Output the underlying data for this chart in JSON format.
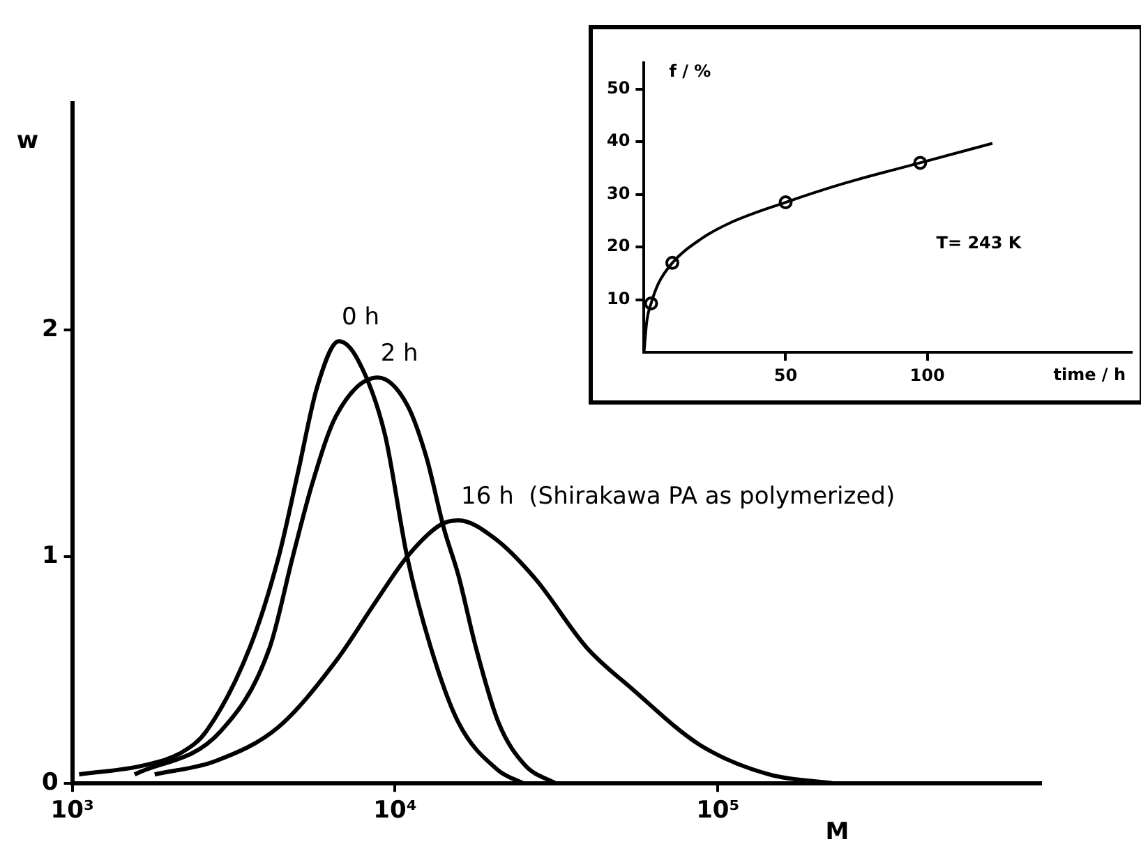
{
  "chart_data": [
    {
      "type": "line",
      "xlabel": "M",
      "ylabel": "w",
      "log": "x",
      "xlim": [
        1000,
        1000000
      ],
      "ylim": [
        0,
        3
      ],
      "xticks": [
        {
          "value": 1000,
          "label": "10³"
        },
        {
          "value": 10000,
          "label": "10⁴"
        },
        {
          "value": 100000,
          "label": "10⁵"
        }
      ],
      "yticks": [
        0,
        1,
        2
      ],
      "grid": false,
      "marker": "none",
      "series": [
        {
          "name": "0 h",
          "color": "#000000",
          "x": [
            1050,
            1670,
            2200,
            2600,
            3550,
            4360,
            5000,
            5740,
            6700,
            7660,
            9300,
            10900,
            12900,
            15700,
            20800,
            25000
          ],
          "values": [
            0.04,
            0.08,
            0.14,
            0.23,
            0.6,
            1.0,
            1.37,
            1.75,
            1.95,
            1.87,
            1.54,
            1.0,
            0.6,
            0.27,
            0.06,
            0
          ]
        },
        {
          "name": "2 h",
          "color": "#000000",
          "x": [
            1560,
            2880,
            4090,
            4820,
            5560,
            6560,
            8840,
            10900,
            12500,
            14200,
            15700,
            17800,
            20900,
            25300,
            31500
          ],
          "values": [
            0.04,
            0.23,
            0.6,
            1.0,
            1.33,
            1.62,
            1.79,
            1.67,
            1.44,
            1.12,
            0.92,
            0.6,
            0.27,
            0.08,
            0
          ]
        },
        {
          "name": "16 h  (Shirakawa PA as polymerized)",
          "color": "#000000",
          "x": [
            1800,
            2790,
            4360,
            6560,
            8700,
            10900,
            13800,
            15700,
            20400,
            27300,
            39200,
            54000,
            88000,
            144000,
            229000
          ],
          "values": [
            0.04,
            0.1,
            0.25,
            0.54,
            0.8,
            1.0,
            1.14,
            1.16,
            1.08,
            0.9,
            0.6,
            0.42,
            0.17,
            0.04,
            0
          ]
        }
      ]
    },
    {
      "type": "line",
      "xlabel": "time / h",
      "ylabel": "f / %",
      "xlim": [
        0,
        172
      ],
      "ylim": [
        0,
        55
      ],
      "xticks": [
        50,
        100
      ],
      "yticks": [
        10,
        20,
        30,
        40,
        50
      ],
      "grid": false,
      "annotations": [
        "T= 243 K"
      ],
      "series": [
        {
          "color": "#000000",
          "marker": "none",
          "x": [
            0,
            1,
            2.5,
            5,
            10,
            20,
            30,
            50,
            70,
            97.5,
            123
          ],
          "values": [
            0,
            6,
            9.3,
            13,
            17,
            21.5,
            24.5,
            28.5,
            32,
            36,
            39.7
          ]
        },
        {
          "type": "scatter",
          "color": "#000000",
          "marker": "circle",
          "x": [
            2.5,
            10,
            50,
            97.5
          ],
          "values": [
            9.3,
            17,
            28.5,
            36
          ]
        }
      ]
    }
  ]
}
